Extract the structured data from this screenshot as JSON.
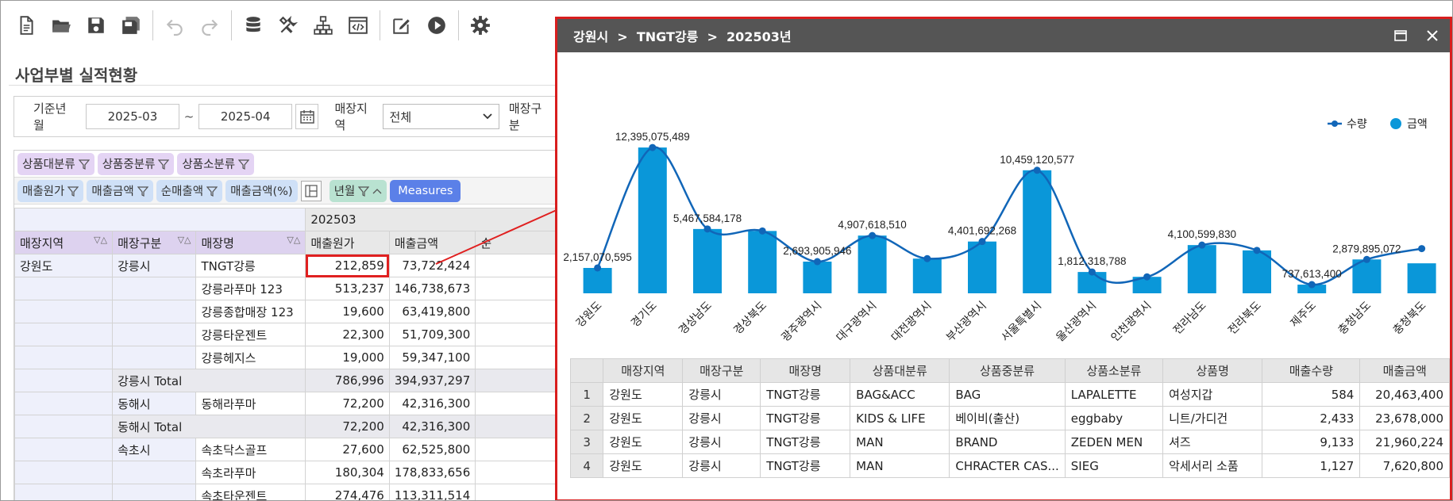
{
  "app": {
    "title": "사업부별 실적현황"
  },
  "toolbar": {
    "buttons": [
      {
        "icon": "new-document-icon"
      },
      {
        "icon": "open-folder-icon"
      },
      {
        "icon": "save-icon"
      },
      {
        "icon": "save-all-icon"
      },
      {
        "icon": "undo-icon"
      },
      {
        "icon": "redo-icon"
      },
      {
        "icon": "database-icon"
      },
      {
        "icon": "tools-icon"
      },
      {
        "icon": "hierarchy-icon"
      },
      {
        "icon": "code-window-icon"
      },
      {
        "icon": "edit-icon"
      },
      {
        "icon": "run-icon"
      },
      {
        "icon": "gear-icon"
      }
    ]
  },
  "filters": {
    "period_label": "기준년월",
    "from": "2025-03",
    "tilde": "~",
    "to": "2025-04",
    "region_label": "매장지역",
    "region_value": "전체",
    "store_type_label": "매장구분"
  },
  "pivot": {
    "filter_chips": [
      "상품대분류",
      "상품중분류",
      "상품소분류"
    ],
    "measure_chips": [
      "매출원가",
      "매출금액",
      "순매출액",
      "매출금액(%)"
    ],
    "column_chips": [
      "년월"
    ],
    "measures_chip": "Measures",
    "period": "202503",
    "row_headers": [
      "매장지역",
      "매장구분",
      "매장명"
    ],
    "measure_headers": [
      "매출원가",
      "매출금액",
      "순"
    ],
    "rows": [
      {
        "region": "강원도",
        "type": "강릉시",
        "store": "TNGT강릉",
        "cost": "212,859",
        "sales": "73,722,424",
        "kind": "row"
      },
      {
        "region": "",
        "type": "",
        "store": "강릉라푸마 123",
        "cost": "513,237",
        "sales": "146,738,673",
        "kind": "row"
      },
      {
        "region": "",
        "type": "",
        "store": "강릉종합매장 123",
        "cost": "19,600",
        "sales": "63,419,800",
        "kind": "row"
      },
      {
        "region": "",
        "type": "",
        "store": "강릉타운젠트",
        "cost": "22,300",
        "sales": "51,709,300",
        "kind": "row"
      },
      {
        "region": "",
        "type": "",
        "store": "강릉헤지스",
        "cost": "19,000",
        "sales": "59,347,100",
        "kind": "row"
      },
      {
        "region": "",
        "type": "강릉시 Total",
        "store": "",
        "cost": "786,996",
        "sales": "394,937,297",
        "kind": "total"
      },
      {
        "region": "",
        "type": "동해시",
        "store": "동해라푸마",
        "cost": "72,200",
        "sales": "42,316,300",
        "kind": "row"
      },
      {
        "region": "",
        "type": "동해시 Total",
        "store": "",
        "cost": "72,200",
        "sales": "42,316,300",
        "kind": "total"
      },
      {
        "region": "",
        "type": "속초시",
        "store": "속초닥스골프",
        "cost": "27,600",
        "sales": "62,525,800",
        "kind": "row"
      },
      {
        "region": "",
        "type": "",
        "store": "속초라푸마",
        "cost": "180,304",
        "sales": "178,833,656",
        "kind": "row"
      },
      {
        "region": "",
        "type": "",
        "store": "속초타운젠트",
        "cost": "274,476",
        "sales": "113,311,514",
        "kind": "row"
      }
    ]
  },
  "popup": {
    "breadcrumb": "강원시  >  TNGT강릉  >  202503년",
    "table_headers": [
      "",
      "매장지역",
      "매장구분",
      "매장명",
      "상품대분류",
      "상품중분류",
      "상품소분류",
      "상품명",
      "매출수량",
      "매출금액"
    ],
    "table_rows": [
      [
        "1",
        "강원도",
        "강릉시",
        "TNGT강릉",
        "BAG&ACC",
        "BAG",
        "LAPALETTE",
        "여성지갑",
        "584",
        "20,463,400"
      ],
      [
        "2",
        "강원도",
        "강릉시",
        "TNGT강릉",
        "KIDS & LIFE",
        "베이비(출산)",
        "eggbaby",
        "니트/가디건",
        "2,433",
        "23,678,000"
      ],
      [
        "3",
        "강원도",
        "강릉시",
        "TNGT강릉",
        "MAN",
        "BRAND",
        "ZEDEN MEN",
        "셔즈",
        "9,133",
        "21,960,224"
      ],
      [
        "4",
        "강원도",
        "강릉시",
        "TNGT강릉",
        "MAN",
        "CHRACTER CAS...",
        "SIEG",
        "악세서리 소품",
        "1,127",
        "7,620,800"
      ]
    ]
  },
  "chart_data": {
    "type": "bar",
    "categories": [
      "강원도",
      "경기도",
      "경상남도",
      "경상북도",
      "광주광역시",
      "대구광역시",
      "대전광역시",
      "부산광역시",
      "서울특별시",
      "울산광역시",
      "인천광역시",
      "전라남도",
      "전라북도",
      "제주도",
      "충청남도",
      "충청북도"
    ],
    "series": [
      {
        "name": "금액",
        "type": "bar",
        "values": [
          2157070595,
          12395075489,
          5467584178,
          5300000000,
          2693905946,
          4907618510,
          2950000000,
          4401692268,
          10459120577,
          1812318788,
          1400000000,
          4100599830,
          3650000000,
          737613400,
          2879895072,
          2550000000
        ]
      },
      {
        "name": "수량",
        "type": "line",
        "values": [
          2157070595,
          12395075489,
          5467584178,
          5300000000,
          2693905946,
          4907618510,
          2950000000,
          4401692268,
          10459120577,
          1812318788,
          1400000000,
          4100599830,
          3650000000,
          737613400,
          2879895072,
          3800000000
        ]
      }
    ],
    "data_labels": [
      {
        "index": 0,
        "text": "2,157,070,595"
      },
      {
        "index": 1,
        "text": "12,395,075,489"
      },
      {
        "index": 2,
        "text": "5,467,584,178"
      },
      {
        "index": 4,
        "text": "2,693,905,946"
      },
      {
        "index": 5,
        "text": "4,907,618,510"
      },
      {
        "index": 7,
        "text": "4,401,692,268"
      },
      {
        "index": 8,
        "text": "10,459,120,577"
      },
      {
        "index": 9,
        "text": "1,812,318,788"
      },
      {
        "index": 11,
        "text": "4,100,599,830"
      },
      {
        "index": 13,
        "text": "737,613,400"
      },
      {
        "index": 14,
        "text": "2,879,895,072"
      }
    ],
    "legend": [
      {
        "name": "수량",
        "kind": "line"
      },
      {
        "name": "금액",
        "kind": "dot"
      }
    ],
    "legend_position": "top-right",
    "ylim": [
      0,
      12400000000
    ],
    "grid": false,
    "colors": {
      "bar": "#0a97d9",
      "line": "#1166b8"
    }
  },
  "colors": {
    "highlight": "#e02020",
    "popup_header": "#555555",
    "measures_chip": "#5b80e8"
  }
}
